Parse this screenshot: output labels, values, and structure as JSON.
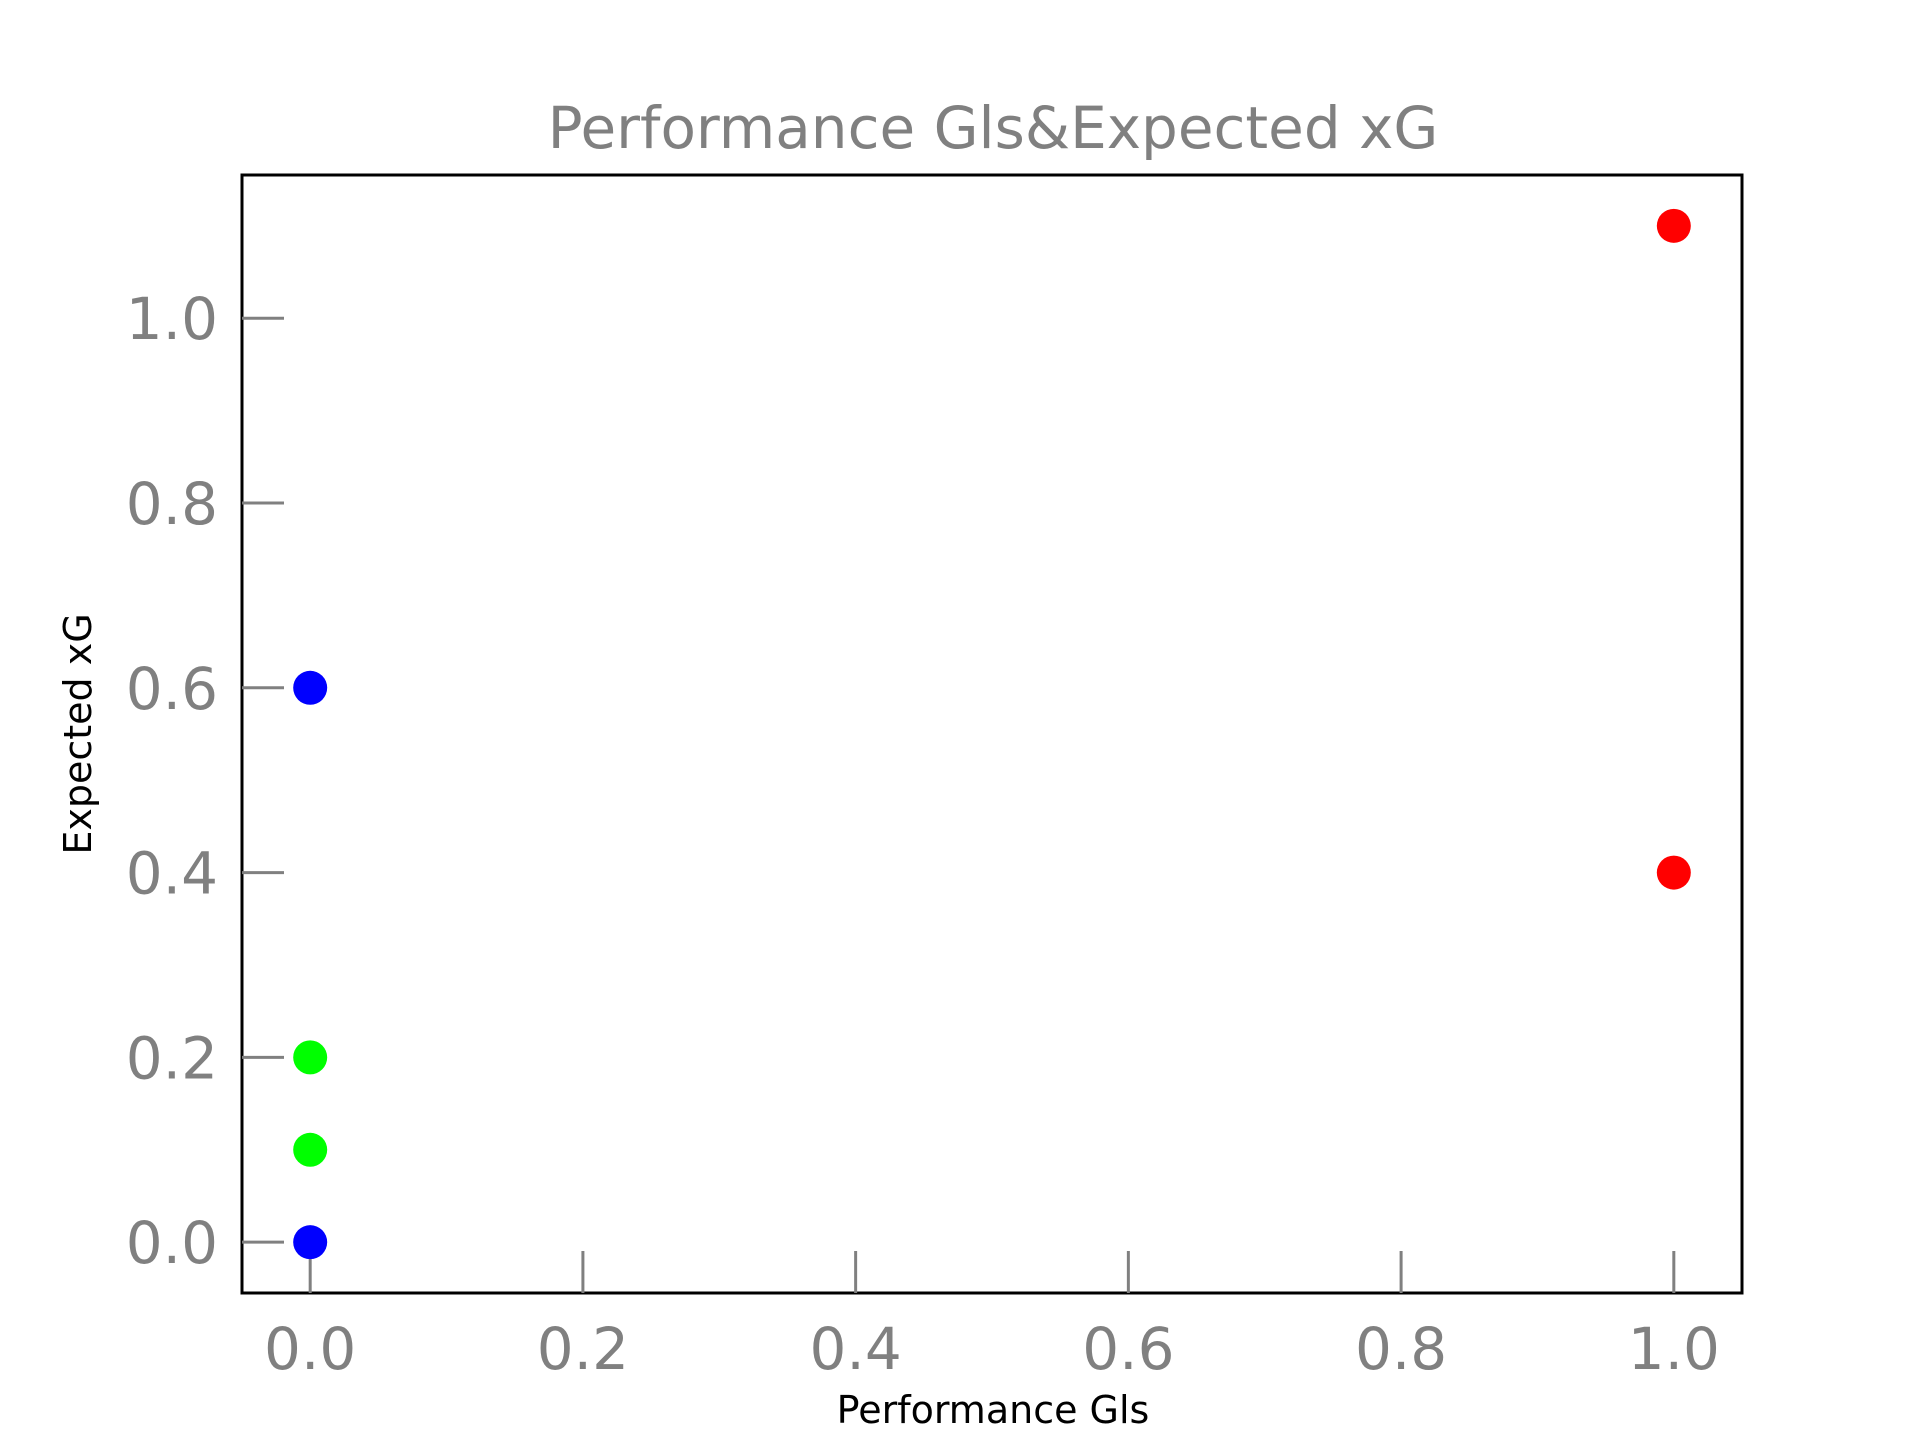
{
  "chart_data": {
    "type": "scatter",
    "title": "Performance Gls&Expected xG",
    "xlabel": "Performance Gls",
    "ylabel": "Expected xG",
    "xlim": [
      -0.05,
      1.05
    ],
    "ylim": [
      -0.055,
      1.155
    ],
    "xticks": [
      "0.0",
      "0.2",
      "0.4",
      "0.6",
      "0.8",
      "1.0"
    ],
    "yticks": [
      "0.0",
      "0.2",
      "0.4",
      "0.6",
      "0.8",
      "1.0"
    ],
    "grid": false,
    "points": [
      {
        "x": 0.0,
        "y": 0.6,
        "color": "#0000ff"
      },
      {
        "x": 0.0,
        "y": 0.0,
        "color": "#0000ff"
      },
      {
        "x": 0.0,
        "y": 0.2,
        "color": "#00ff00"
      },
      {
        "x": 0.0,
        "y": 0.1,
        "color": "#00ff00"
      },
      {
        "x": 1.0,
        "y": 1.1,
        "color": "#ff0000"
      },
      {
        "x": 1.0,
        "y": 0.4,
        "color": "#ff0000"
      }
    ]
  }
}
